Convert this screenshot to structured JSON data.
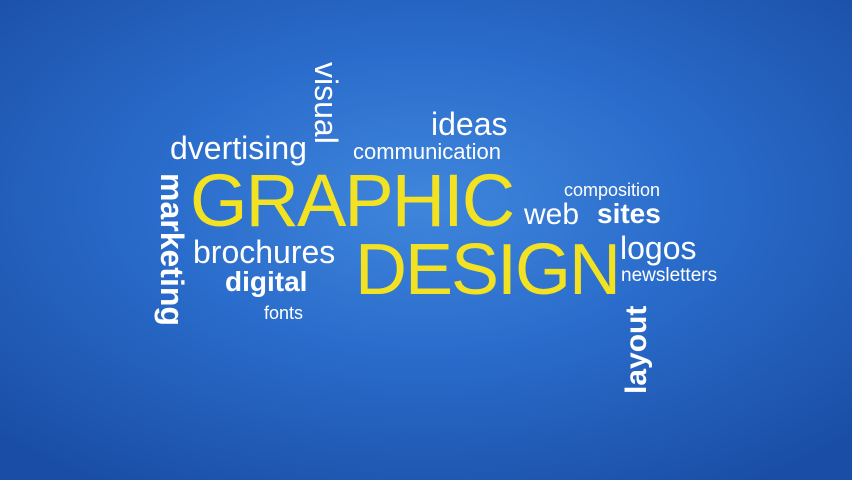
{
  "colors": {
    "background": "#2a6ccb",
    "accent": "#f3e221",
    "text": "#ffffff"
  },
  "words": {
    "graphic": "GRAPHIC",
    "design": "DESIGN",
    "visual": "visual",
    "ideas": "ideas",
    "advertising": "dvertising",
    "communication": "communication",
    "composition": "composition",
    "web": "web",
    "sites": "sites",
    "logos": "logos",
    "newsletters": "newsletters",
    "marketing": "marketing",
    "brochures": "brochures",
    "digital": "digital",
    "fonts": "fonts",
    "layout": "layout"
  }
}
